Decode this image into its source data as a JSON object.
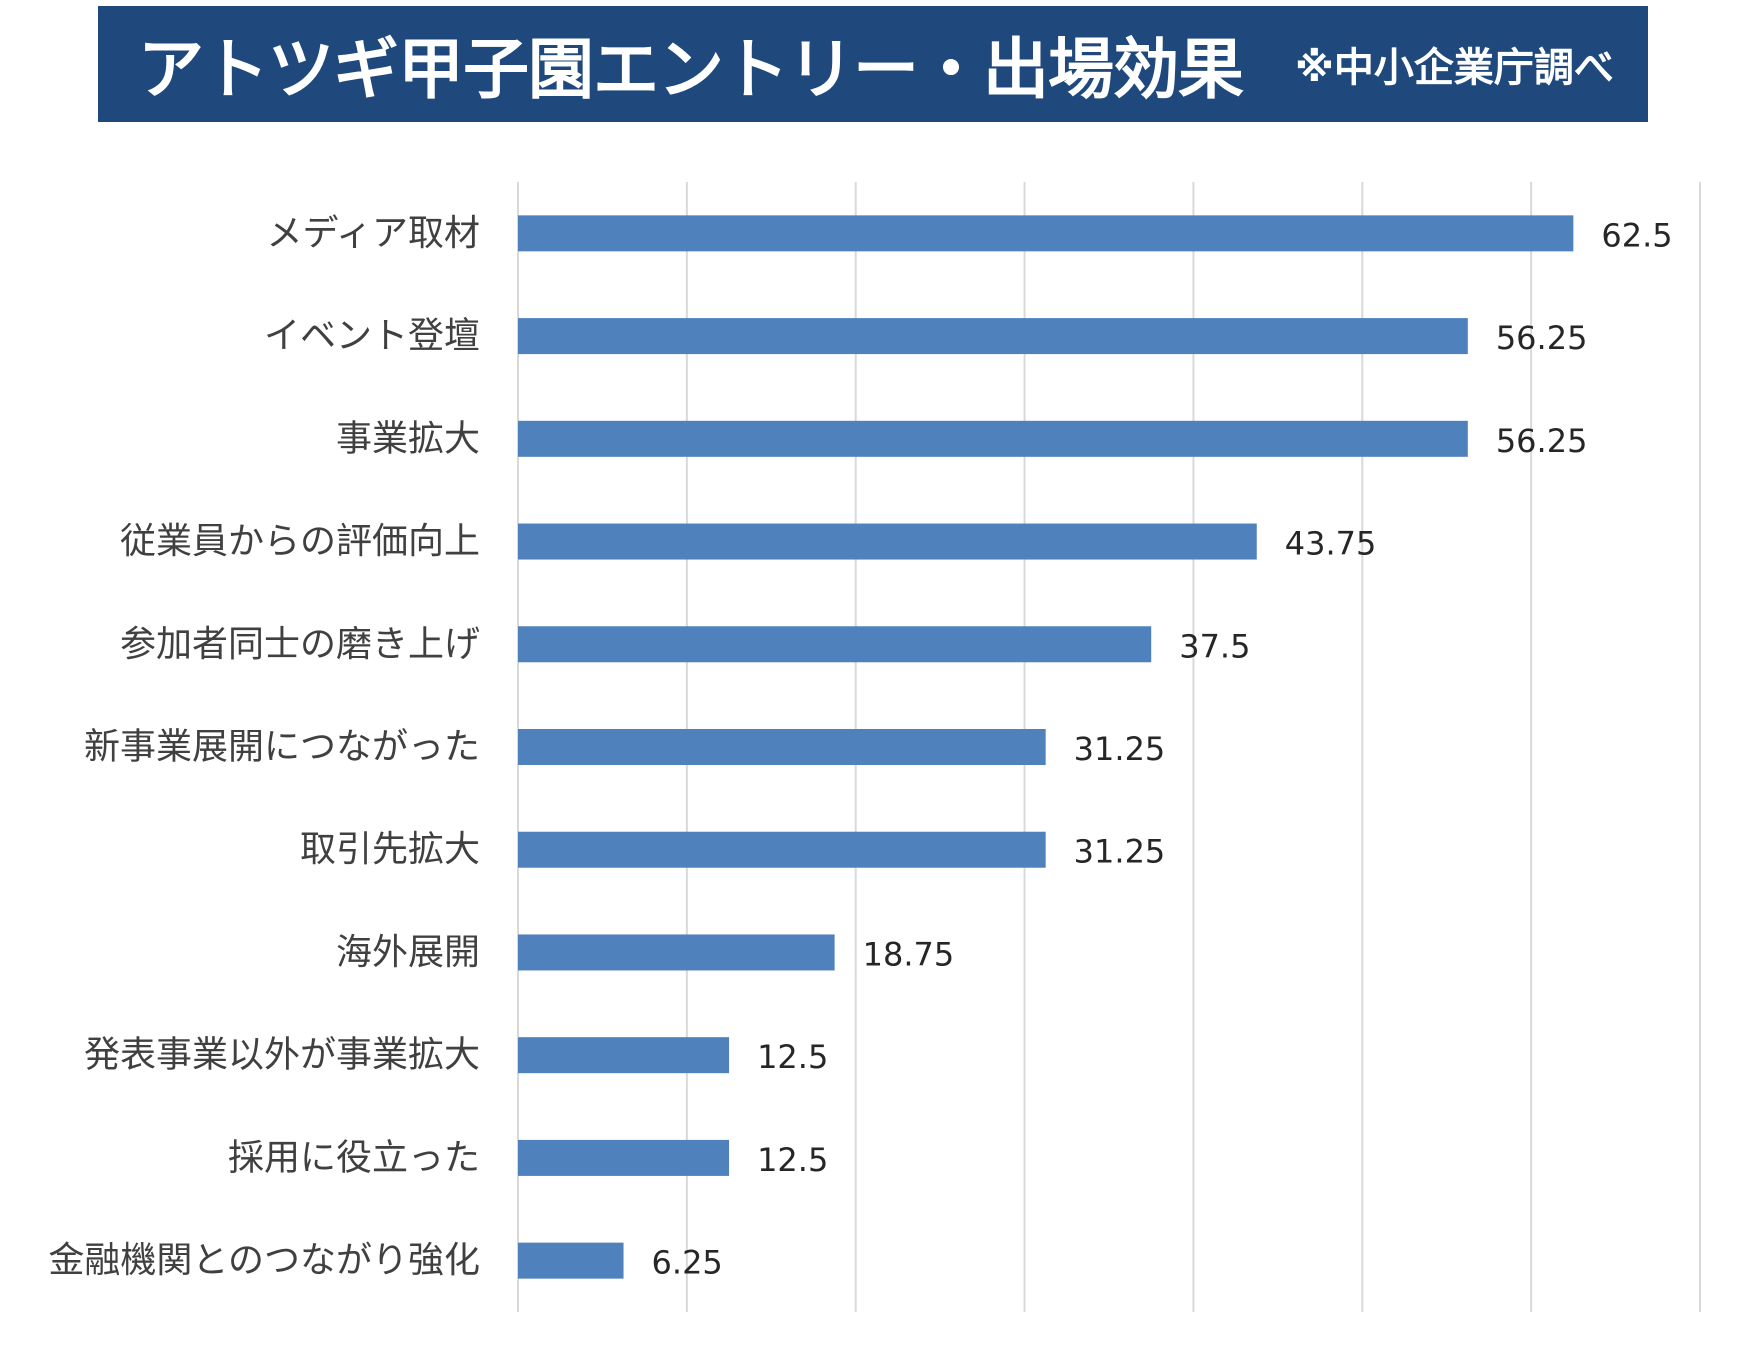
{
  "title": {
    "main": "アトツギ甲子園エントリー・出場効果",
    "note": "※中小企業庁調べ"
  },
  "colors": {
    "banner": "#1f497d",
    "bar": "#4f81bd",
    "grid": "#d9d9d9"
  },
  "chart_data": {
    "type": "bar",
    "orientation": "horizontal",
    "categories": [
      "メディア取材",
      "イベント登壇",
      "事業拡大",
      "従業員からの評価向上",
      "参加者同士の磨き上げ",
      "新事業展開につながった",
      "取引先拡大",
      "海外展開",
      "発表事業以外が事業拡大",
      "採用に役立った",
      "金融機関とのつながり強化"
    ],
    "values": [
      62.5,
      56.25,
      56.25,
      43.75,
      37.5,
      31.25,
      31.25,
      18.75,
      12.5,
      12.5,
      6.25
    ],
    "value_labels": [
      "62.5",
      "56.25",
      "56.25",
      "43.75",
      "37.5",
      "31.25",
      "31.25",
      "18.75",
      "12.5",
      "12.5",
      "6.25"
    ],
    "xlim": [
      0,
      70
    ],
    "grid_step": 10,
    "grid": true,
    "legend": "none"
  }
}
